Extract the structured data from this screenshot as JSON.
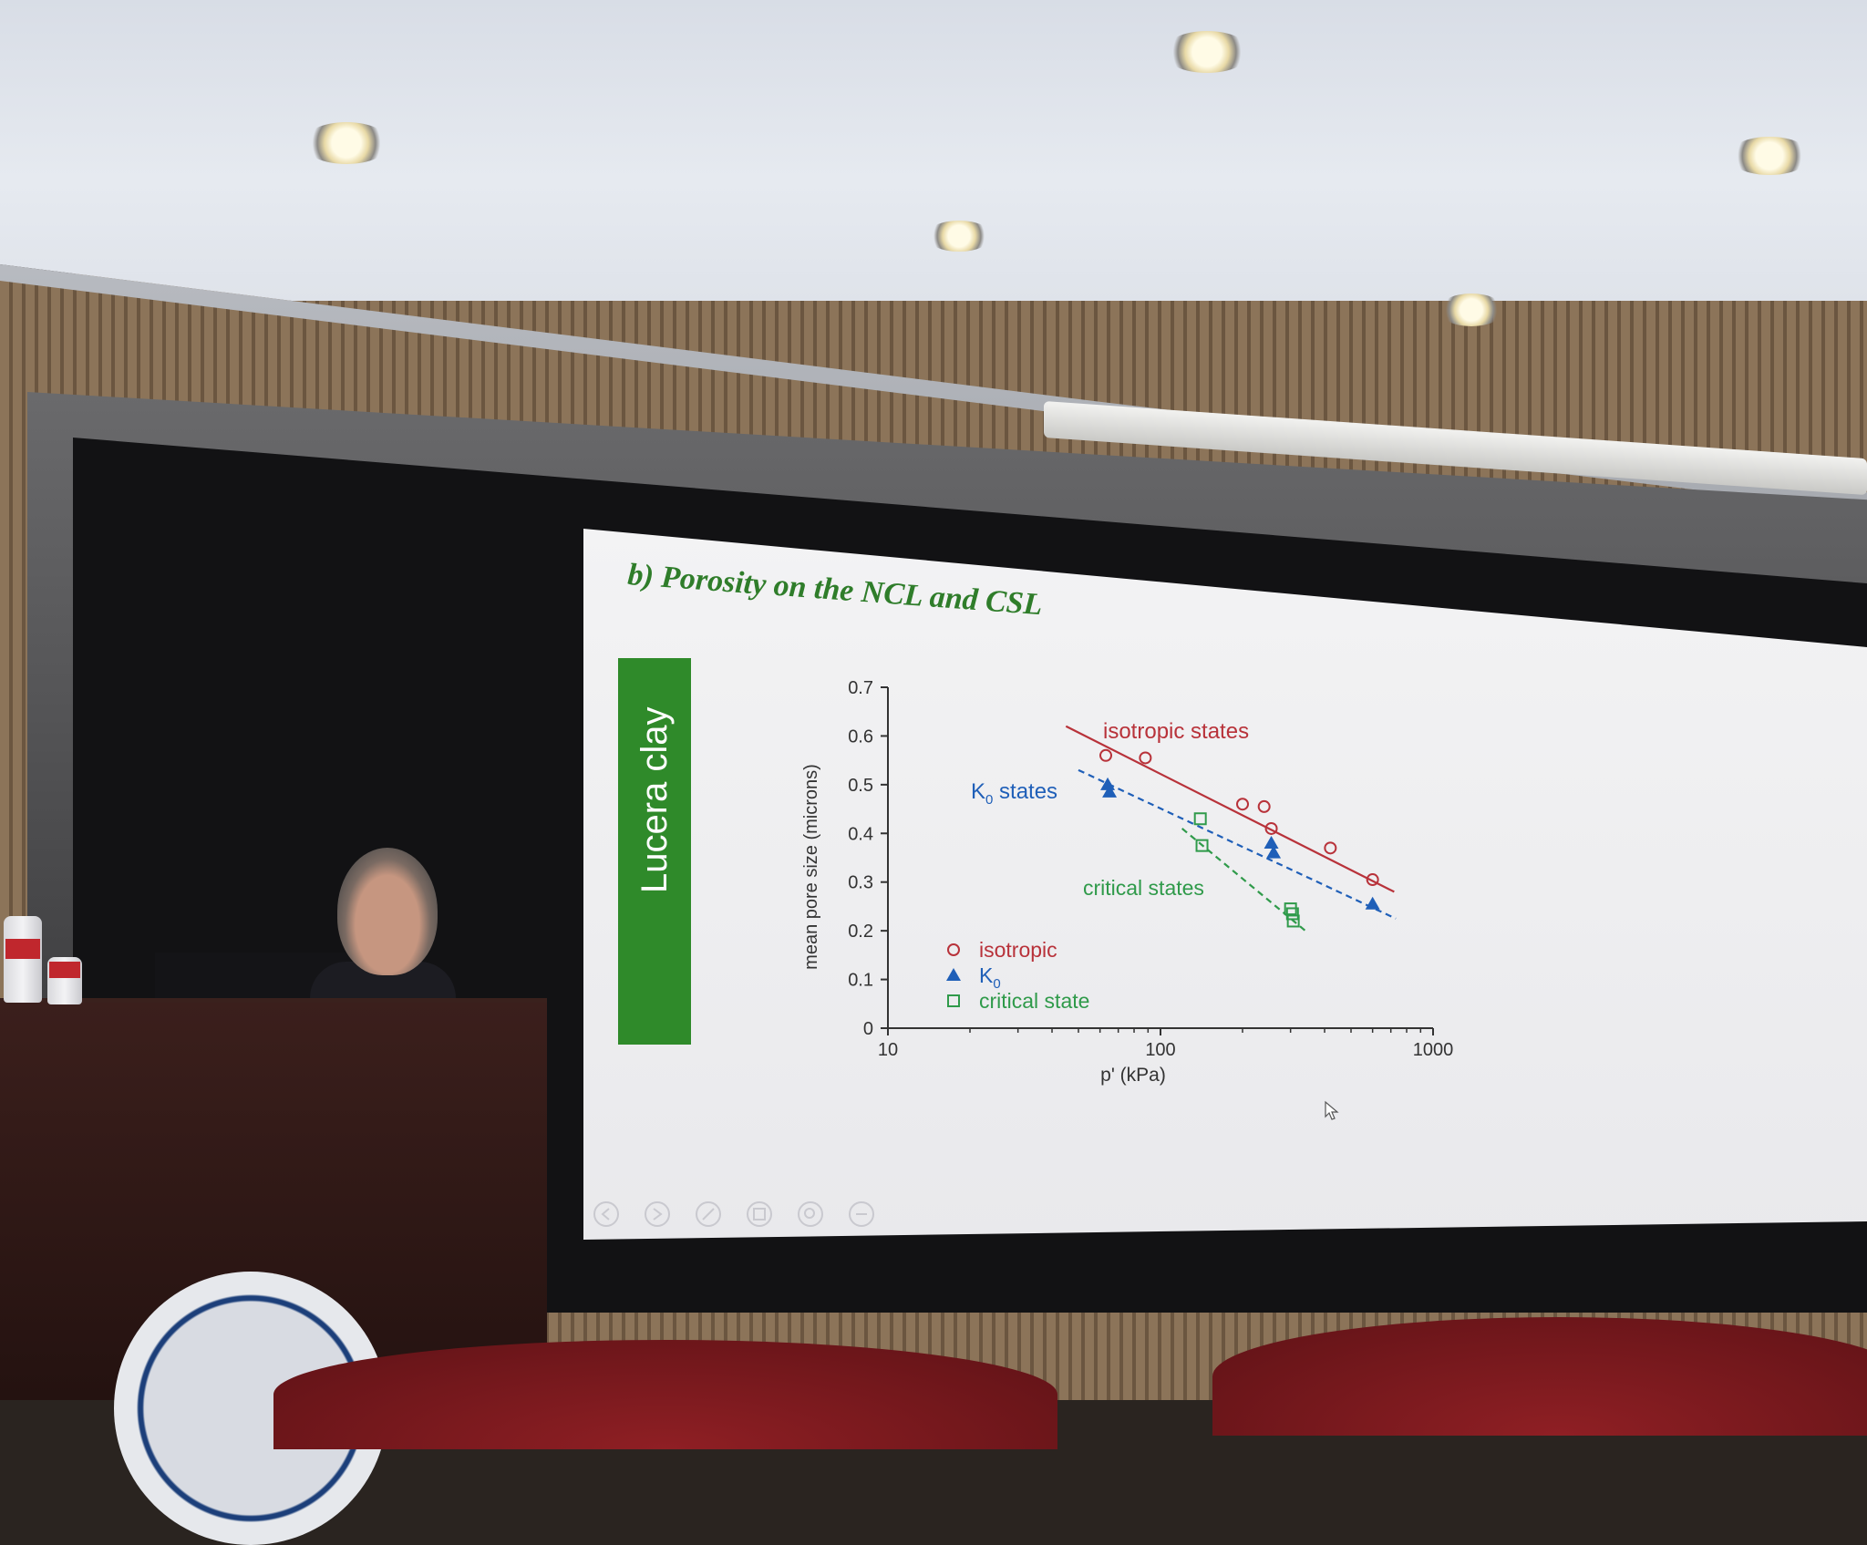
{
  "slide": {
    "title": "b) Porosity on the NCL and CSL",
    "side_label": "Lucera clay",
    "nav_icons": [
      "prev-icon",
      "play-icon",
      "pen-icon",
      "grid-icon",
      "zoom-icon",
      "more-icon"
    ]
  },
  "chart_data": {
    "type": "scatter",
    "xlabel": "p' (kPa)",
    "ylabel": "mean pore size (microns)",
    "xscale": "log",
    "xlim": [
      10,
      1000
    ],
    "ylim": [
      0,
      0.7
    ],
    "x_ticks": [
      "10",
      "100",
      "1000"
    ],
    "y_ticks": [
      "0",
      "0.1",
      "0.2",
      "0.3",
      "0.4",
      "0.5",
      "0.6",
      "0.7"
    ],
    "legend_placement": "lower-left",
    "legend": [
      {
        "label": "isotropic",
        "marker": "circle-open",
        "color": "#b8323a"
      },
      {
        "label": "K",
        "sub": "0",
        "marker": "triangle-filled",
        "color": "#1f5fb8"
      },
      {
        "label": "critical state",
        "marker": "square-open",
        "color": "#2f9a4a"
      }
    ],
    "annotations": [
      {
        "text": "isotropic states",
        "color": "#b8323a"
      },
      {
        "text": "K",
        "sub": "0",
        "text2": " states",
        "color": "#1f5fb8"
      },
      {
        "text": "critical states",
        "color": "#2f9a4a"
      }
    ],
    "series": [
      {
        "marker": "circle-open",
        "color": "#b8323a",
        "points": [
          [
            63,
            0.56
          ],
          [
            88,
            0.555
          ],
          [
            200,
            0.46
          ],
          [
            240,
            0.455
          ],
          [
            255,
            0.41
          ],
          [
            420,
            0.37
          ],
          [
            600,
            0.305
          ]
        ]
      },
      {
        "marker": "triangle-filled",
        "color": "#1f5fb8",
        "points": [
          [
            64,
            0.5
          ],
          [
            65,
            0.485
          ],
          [
            255,
            0.38
          ],
          [
            260,
            0.36
          ],
          [
            600,
            0.255
          ]
        ]
      },
      {
        "marker": "square-open",
        "color": "#2f9a4a",
        "points": [
          [
            140,
            0.43
          ],
          [
            142,
            0.375
          ],
          [
            300,
            0.245
          ],
          [
            305,
            0.235
          ],
          [
            307,
            0.22
          ]
        ]
      }
    ],
    "fit_lines": [
      {
        "style": "solid",
        "color": "#b8323a",
        "from": [
          45,
          0.62
        ],
        "to": [
          720,
          0.28
        ]
      },
      {
        "style": "dashed",
        "color": "#1f5fb8",
        "from": [
          50,
          0.53
        ],
        "to": [
          730,
          0.225
        ]
      },
      {
        "style": "dashed",
        "color": "#2f9a4a",
        "from": [
          120,
          0.41
        ],
        "to": [
          340,
          0.2
        ]
      }
    ],
    "colors": {
      "axis": "#333333",
      "tick_text": "#333333"
    }
  }
}
